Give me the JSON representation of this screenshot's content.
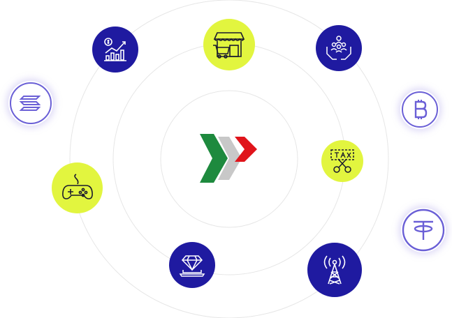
{
  "scene": {
    "center_logo": "chevrons-logo",
    "colors": {
      "primary_blue": "#1f1aa0",
      "accent_lime": "#e2f53f",
      "ring": "#e6e6e6",
      "coin_purple": "#6a5fd6",
      "logo_green": "#1e8a3e",
      "logo_gray": "#c8c8c8",
      "logo_red": "#e0141b"
    },
    "nodes": [
      {
        "icon": "finance-chart-icon",
        "style": "blue"
      },
      {
        "icon": "shop-cart-icon",
        "style": "lime"
      },
      {
        "icon": "community-hands-icon",
        "style": "blue"
      },
      {
        "icon": "tax-scissors-icon",
        "style": "lime"
      },
      {
        "icon": "game-controller-icon",
        "style": "lime"
      },
      {
        "icon": "diamond-laptop-icon",
        "style": "blue"
      },
      {
        "icon": "radio-tower-icon",
        "style": "blue"
      }
    ],
    "coins": [
      {
        "icon": "solana-coin-icon"
      },
      {
        "icon": "bitcoin-coin-icon"
      },
      {
        "icon": "tether-coin-icon"
      }
    ]
  }
}
